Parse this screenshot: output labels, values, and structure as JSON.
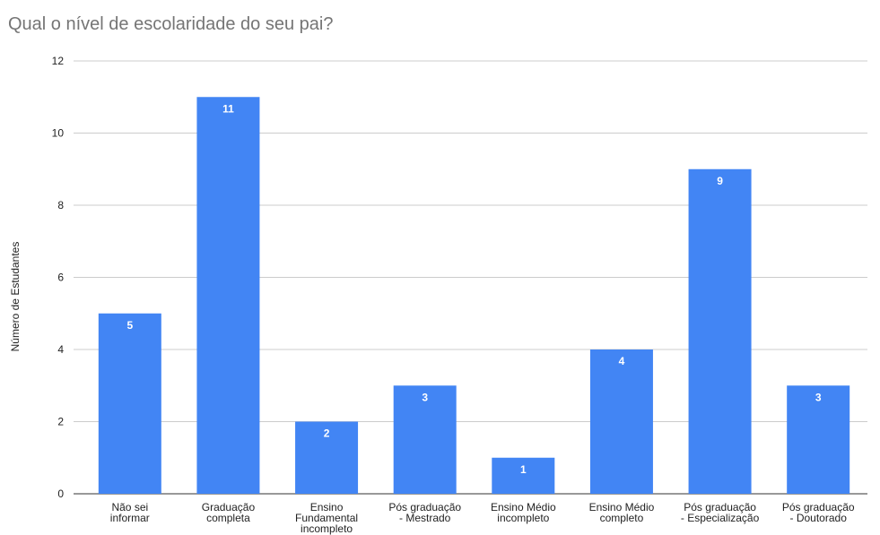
{
  "chart_data": {
    "type": "bar",
    "title": "Qual o nível de escolaridade do seu pai?",
    "ylabel": "Número de Estudantes",
    "xlabel": "",
    "categories": [
      [
        "Não sei",
        "informar"
      ],
      [
        "Graduação",
        "completa"
      ],
      [
        "Ensino",
        "Fundamental",
        "incompleto"
      ],
      [
        "Pós graduação",
        "- Mestrado"
      ],
      [
        "Ensino Médio",
        "incompleto"
      ],
      [
        "Ensino Médio",
        "completo"
      ],
      [
        "Pós graduação",
        "- Especialização"
      ],
      [
        "Pós graduação",
        "- Doutorado"
      ]
    ],
    "values": [
      5,
      11,
      2,
      3,
      1,
      4,
      9,
      3
    ],
    "ylim": [
      0,
      12
    ],
    "yticks": [
      0,
      2,
      4,
      6,
      8,
      10,
      12
    ],
    "grid": true,
    "legend": "none",
    "bar_color": "#4285f4",
    "gridline_color": "#cccccc",
    "axis_color": "#333333"
  }
}
